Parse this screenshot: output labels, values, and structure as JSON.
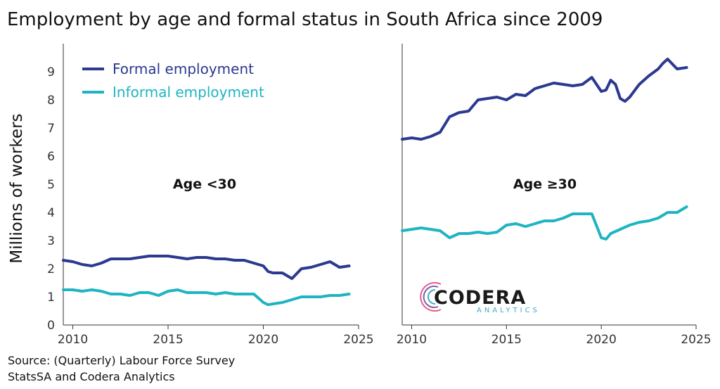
{
  "title": "Employment by age and formal status in South Africa since 2009",
  "source_lines": [
    "Source: (Quarterly) Labour Force Survey",
    "StatsSA and Codera Analytics"
  ],
  "logo": {
    "name": "CODERA",
    "tagline": "ANALYTICS"
  },
  "colors": {
    "formal": "#2b3990",
    "informal": "#1fb4c2",
    "axis": "#333333"
  },
  "chart_data": [
    {
      "type": "line",
      "panel_label": "Age <30",
      "ylabel": "Millions of workers",
      "xlim": [
        2009.5,
        2025
      ],
      "ylim": [
        0,
        10
      ],
      "xticks": [
        2010,
        2015,
        2020,
        2025
      ],
      "yticks": [
        0,
        1,
        2,
        3,
        4,
        5,
        6,
        7,
        8,
        9
      ],
      "legend": "top-left",
      "grid": false,
      "series": [
        {
          "name": "Formal employment",
          "color": "#2b3990",
          "x": [
            2009.5,
            2010.0,
            2010.5,
            2011.0,
            2011.5,
            2012.0,
            2012.5,
            2013.0,
            2013.5,
            2014.0,
            2014.5,
            2015.0,
            2015.5,
            2016.0,
            2016.5,
            2017.0,
            2017.5,
            2018.0,
            2018.5,
            2019.0,
            2019.5,
            2020.0,
            2020.25,
            2020.5,
            2021.0,
            2021.5,
            2022.0,
            2022.5,
            2023.0,
            2023.5,
            2024.0,
            2024.5
          ],
          "y": [
            2.3,
            2.25,
            2.15,
            2.1,
            2.2,
            2.35,
            2.35,
            2.35,
            2.4,
            2.45,
            2.45,
            2.45,
            2.4,
            2.35,
            2.4,
            2.4,
            2.35,
            2.35,
            2.3,
            2.3,
            2.2,
            2.1,
            1.9,
            1.85,
            1.85,
            1.65,
            2.0,
            2.05,
            2.15,
            2.25,
            2.05,
            2.1
          ]
        },
        {
          "name": "Informal employment",
          "color": "#1fb4c2",
          "x": [
            2009.5,
            2010.0,
            2010.5,
            2011.0,
            2011.5,
            2012.0,
            2012.5,
            2013.0,
            2013.5,
            2014.0,
            2014.5,
            2015.0,
            2015.5,
            2016.0,
            2016.5,
            2017.0,
            2017.5,
            2018.0,
            2018.5,
            2019.0,
            2019.5,
            2020.0,
            2020.25,
            2020.5,
            2021.0,
            2021.5,
            2022.0,
            2022.5,
            2023.0,
            2023.5,
            2024.0,
            2024.5
          ],
          "y": [
            1.25,
            1.25,
            1.2,
            1.25,
            1.2,
            1.1,
            1.1,
            1.05,
            1.15,
            1.15,
            1.05,
            1.2,
            1.25,
            1.15,
            1.15,
            1.15,
            1.1,
            1.15,
            1.1,
            1.1,
            1.1,
            0.8,
            0.72,
            0.75,
            0.8,
            0.9,
            1.0,
            1.0,
            1.0,
            1.05,
            1.05,
            1.1
          ]
        }
      ]
    },
    {
      "type": "line",
      "panel_label": "Age ≥30",
      "xlim": [
        2009.5,
        2025
      ],
      "ylim": [
        0,
        10
      ],
      "xticks": [
        2010,
        2015,
        2020,
        2025
      ],
      "grid": false,
      "series": [
        {
          "name": "Formal employment",
          "color": "#2b3990",
          "x": [
            2009.5,
            2010.0,
            2010.5,
            2011.0,
            2011.5,
            2012.0,
            2012.5,
            2013.0,
            2013.5,
            2014.0,
            2014.5,
            2015.0,
            2015.5,
            2016.0,
            2016.5,
            2017.0,
            2017.5,
            2018.0,
            2018.5,
            2019.0,
            2019.5,
            2020.0,
            2020.25,
            2020.5,
            2020.75,
            2021.0,
            2021.25,
            2021.5,
            2022.0,
            2022.5,
            2023.0,
            2023.25,
            2023.5,
            2024.0,
            2024.5
          ],
          "y": [
            6.6,
            6.65,
            6.6,
            6.7,
            6.85,
            7.4,
            7.55,
            7.6,
            8.0,
            8.05,
            8.1,
            8.0,
            8.2,
            8.15,
            8.4,
            8.5,
            8.6,
            8.55,
            8.5,
            8.55,
            8.8,
            8.3,
            8.35,
            8.7,
            8.55,
            8.05,
            7.95,
            8.1,
            8.55,
            8.85,
            9.1,
            9.3,
            9.45,
            9.1,
            9.15
          ]
        },
        {
          "name": "Informal employment",
          "color": "#1fb4c2",
          "x": [
            2009.5,
            2010.0,
            2010.5,
            2011.0,
            2011.5,
            2012.0,
            2012.5,
            2013.0,
            2013.5,
            2014.0,
            2014.5,
            2015.0,
            2015.5,
            2016.0,
            2016.5,
            2017.0,
            2017.5,
            2018.0,
            2018.5,
            2019.0,
            2019.5,
            2020.0,
            2020.25,
            2020.5,
            2021.0,
            2021.5,
            2022.0,
            2022.5,
            2023.0,
            2023.5,
            2024.0,
            2024.5
          ],
          "y": [
            3.35,
            3.4,
            3.45,
            3.4,
            3.35,
            3.1,
            3.25,
            3.25,
            3.3,
            3.25,
            3.3,
            3.55,
            3.6,
            3.5,
            3.6,
            3.7,
            3.7,
            3.8,
            3.95,
            3.95,
            3.95,
            3.1,
            3.05,
            3.25,
            3.4,
            3.55,
            3.65,
            3.7,
            3.8,
            4.0,
            4.0,
            4.2
          ]
        }
      ]
    }
  ]
}
